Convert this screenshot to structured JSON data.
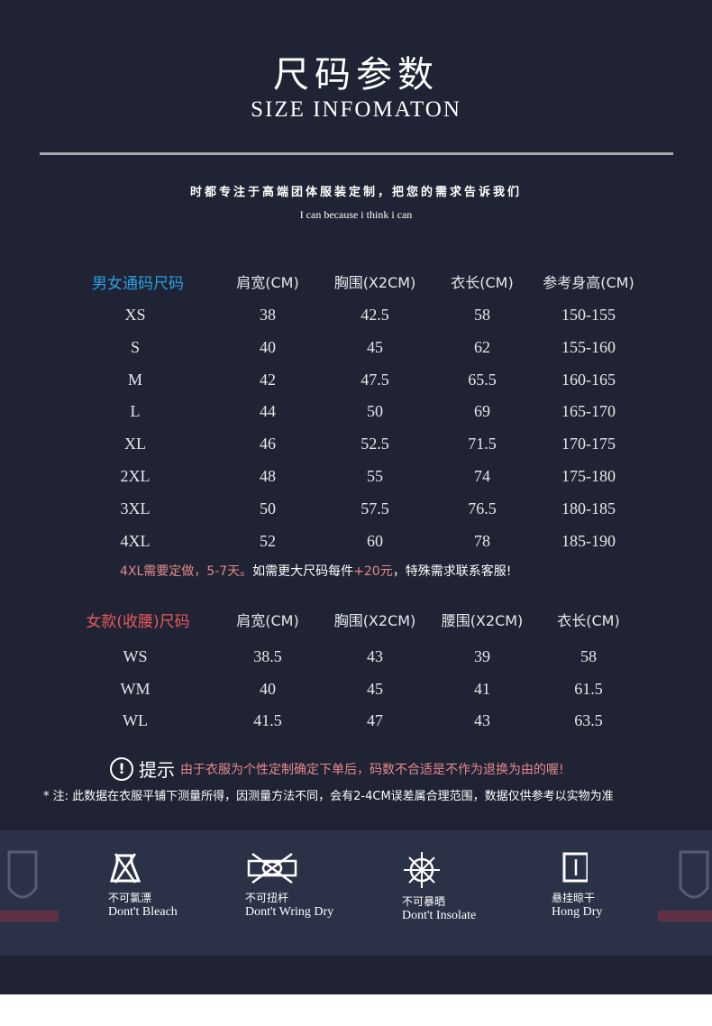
{
  "header": {
    "title": "尺码参数",
    "subtitle": "SIZE INFOMATON",
    "slogan": "时都专注于高端团体服装定制，把您的需求告诉我们",
    "slogan_en": "I can because i think i can"
  },
  "unisex": {
    "label": "男女通码尺码",
    "label_color": "#2a9fe0",
    "headers": [
      "肩宽(CM)",
      "胸围(X2CM)",
      "衣长(CM)",
      "参考身高(CM)"
    ],
    "rows": [
      [
        "XS",
        "38",
        "42.5",
        "58",
        "150-155"
      ],
      [
        "S",
        "40",
        "45",
        "62",
        "155-160"
      ],
      [
        "M",
        "42",
        "47.5",
        "65.5",
        "160-165"
      ],
      [
        "L",
        "44",
        "50",
        "69",
        "165-170"
      ],
      [
        "XL",
        "46",
        "52.5",
        "71.5",
        "170-175"
      ],
      [
        "2XL",
        "48",
        "55",
        "74",
        "175-180"
      ],
      [
        "3XL",
        "50",
        "57.5",
        "76.5",
        "180-185"
      ],
      [
        "4XL",
        "52",
        "60",
        "78",
        "185-190"
      ]
    ]
  },
  "note": {
    "p1": "4XL需要定做，5-7天。",
    "p2": "如需更大尺码每件",
    "p3": "+20元",
    "p4": "，特殊需求联系客服!",
    "accent": "#e58a8a"
  },
  "women": {
    "label": "女款(收腰)尺码",
    "label_color": "#e85a5a",
    "headers": [
      "肩宽(CM)",
      "胸围(X2CM)",
      "腰围(X2CM)",
      "衣长(CM)"
    ],
    "rows": [
      [
        "WS",
        "38.5",
        "43",
        "39",
        "58"
      ],
      [
        "WM",
        "40",
        "45",
        "41",
        "61.5"
      ],
      [
        "WL",
        "41.5",
        "47",
        "43",
        "63.5"
      ]
    ]
  },
  "tip": {
    "icon": "exclamation-circle-icon",
    "label": "提示",
    "text": "由于衣服为个性定制确定下单后，码数不合适是不作为退换为由的喔!"
  },
  "disclaimer": "*  注:  此数据在衣服平铺下测量所得，因测量方法不同，会有2-4CM误差属合理范围，数据仅供参考以实物为准",
  "care": [
    {
      "icon": "no-bleach-icon",
      "cn": "不可氯漂",
      "en": "Dont't Bleach"
    },
    {
      "icon": "no-wring-icon",
      "cn": "不可扭杆",
      "en": "Dont't Wring Dry"
    },
    {
      "icon": "no-sun-icon",
      "cn": "不可暴晒",
      "en": "Dont't Insolate"
    },
    {
      "icon": "hang-dry-icon",
      "cn": "悬挂晾干",
      "en": "Hong Dry"
    }
  ]
}
